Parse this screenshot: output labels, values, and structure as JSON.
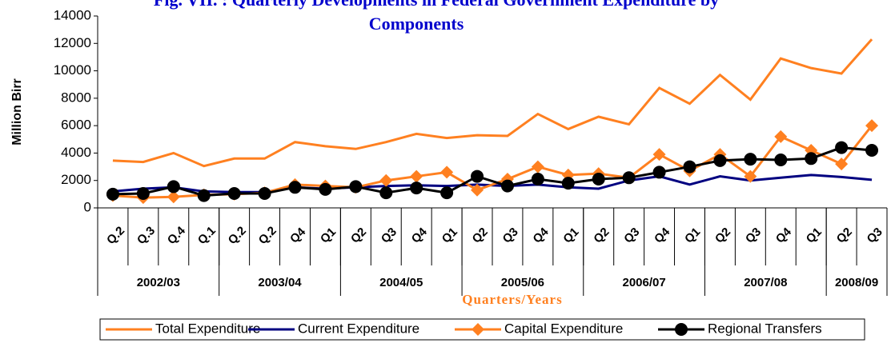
{
  "chart_data": {
    "type": "line",
    "title_lines": [
      "Fig. VII. : Quarterly Developments in Federal Government Expenditure by",
      "Components"
    ],
    "y_label": "Million Birr",
    "x_label": "Quarters/Years",
    "categories": [
      "Q.2",
      "Q.3",
      "Q.4",
      "Q.1",
      "Q.2",
      "Q.2",
      "Q4",
      "Q1",
      "Q2",
      "Q3",
      "Q4",
      "Q1",
      "Q2",
      "Q3",
      "Q4",
      "Q1",
      "Q2",
      "Q3",
      "Q4",
      "Q1",
      "Q2",
      "Q3",
      "Q4",
      "Q1",
      "Q2",
      "Q3"
    ],
    "groups": [
      {
        "name": "2002/03",
        "count": 4
      },
      {
        "name": "2003/04",
        "count": 4
      },
      {
        "name": "2004/05",
        "count": 4
      },
      {
        "name": "2005/06",
        "count": 4
      },
      {
        "name": "2006/07",
        "count": 4
      },
      {
        "name": "2007/08",
        "count": 4
      },
      {
        "name": "2008/09",
        "count": 2
      }
    ],
    "series": [
      {
        "name": "Total Expenditure",
        "color": "#ff8020",
        "marker": "none",
        "values": [
          3450,
          3350,
          4000,
          3050,
          3600,
          3600,
          4800,
          4500,
          4300,
          4800,
          5400,
          5100,
          5300,
          5250,
          6850,
          5750,
          6650,
          6100,
          8750,
          7600,
          9700,
          7900,
          10900,
          10200,
          9800,
          12300
        ]
      },
      {
        "name": "Current Expenditure",
        "color": "#000080",
        "marker": "none",
        "values": [
          1200,
          1400,
          1500,
          1200,
          1150,
          1150,
          1500,
          1400,
          1500,
          1600,
          1650,
          1600,
          1700,
          1600,
          1700,
          1500,
          1400,
          2000,
          2300,
          1700,
          2300,
          2000,
          2200,
          2400,
          2250,
          2050
        ]
      },
      {
        "name": "Capital Expenditure",
        "color": "#ff8020",
        "marker": "diamond",
        "values": [
          900,
          750,
          800,
          950,
          1000,
          1100,
          1700,
          1600,
          1500,
          2000,
          2300,
          2600,
          1300,
          2100,
          3000,
          2400,
          2500,
          2200,
          3900,
          2700,
          3900,
          2300,
          5200,
          4200,
          3200,
          6000
        ]
      },
      {
        "name": "Regional Transfers",
        "color": "#000000",
        "marker": "circle",
        "values": [
          1000,
          1050,
          1550,
          900,
          1050,
          1050,
          1500,
          1350,
          1550,
          1100,
          1450,
          1100,
          2300,
          1600,
          2100,
          1800,
          2100,
          2200,
          2600,
          3000,
          3450,
          3550,
          3500,
          3600,
          4400,
          4200
        ]
      }
    ],
    "ylim": [
      0,
      14000
    ],
    "yticks": [
      0,
      2000,
      4000,
      6000,
      8000,
      10000,
      12000,
      14000
    ],
    "grid": false
  }
}
